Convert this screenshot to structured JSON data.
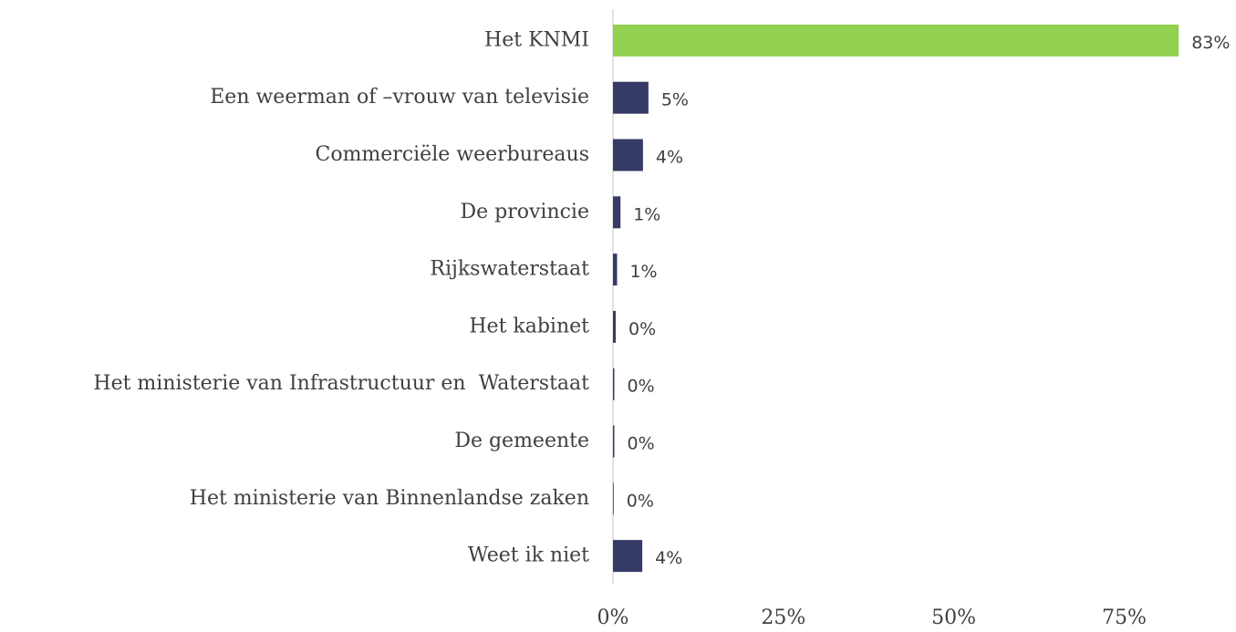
{
  "chart_data": {
    "type": "hbar",
    "categories": [
      "Het KNMI",
      "Een weerman of –vrouw van televisie",
      "Commerciële weerbureaus",
      "De provincie",
      "Rijkswaterstaat",
      "Het kabinet",
      "Het ministerie van Infrastructuur en  Waterstaat",
      "De gemeente",
      "Het ministerie van Binnenlandse zaken",
      "Weet ik niet"
    ],
    "values": [
      83,
      5.2,
      4.4,
      1.1,
      0.6,
      0.4,
      0.2,
      0.2,
      0.1,
      4.3
    ],
    "value_labels": [
      "83%",
      "5%",
      "4%",
      "1%",
      "1%",
      "0%",
      "0%",
      "0%",
      "0%",
      "4%"
    ],
    "colors": [
      "#92d050",
      "#353b66",
      "#353b66",
      "#353b66",
      "#353b66",
      "#353b66",
      "#353b66",
      "#353b66",
      "#353b66",
      "#353b66"
    ],
    "xlim": [
      0,
      91.4
    ],
    "xticks": [
      {
        "value": 0,
        "label": "0%"
      },
      {
        "value": 25,
        "label": "25%"
      },
      {
        "value": 50,
        "label": "50%"
      },
      {
        "value": 75,
        "label": "75%"
      }
    ]
  }
}
